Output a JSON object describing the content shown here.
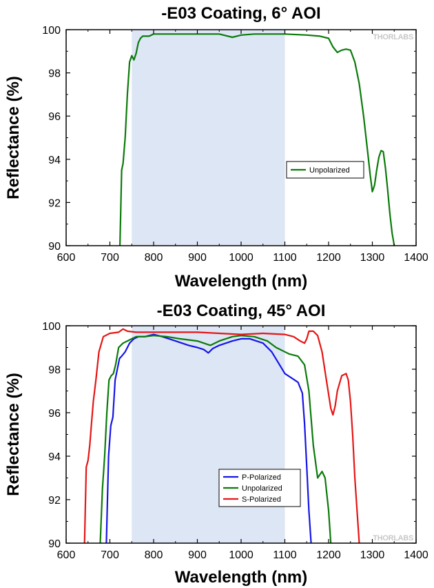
{
  "watermark": "THORLABS",
  "chart_data": [
    {
      "type": "line",
      "title": "-E03 Coating, 6° AOI",
      "xlabel": "Wavelength (nm)",
      "ylabel": "Reflectance (%)",
      "xlim": [
        600,
        1400
      ],
      "ylim": [
        90,
        100
      ],
      "xticks": [
        600,
        700,
        800,
        900,
        1000,
        1100,
        1200,
        1300,
        1400
      ],
      "yticks": [
        90,
        92,
        94,
        96,
        98,
        100
      ],
      "shaded_region": [
        750,
        1100
      ],
      "legend_placement": "center-right",
      "series": [
        {
          "name": "Unpolarized",
          "color": "#0a7a0a",
          "x": [
            723,
            727,
            730,
            735,
            740,
            745,
            750,
            755,
            760,
            765,
            770,
            775,
            780,
            790,
            800,
            820,
            850,
            900,
            950,
            980,
            1000,
            1030,
            1060,
            1100,
            1150,
            1180,
            1200,
            1210,
            1220,
            1230,
            1240,
            1250,
            1260,
            1270,
            1280,
            1290,
            1295,
            1300,
            1305,
            1310,
            1315,
            1320,
            1325,
            1330,
            1335,
            1340,
            1345,
            1350
          ],
          "y": [
            90.0,
            93.5,
            93.8,
            95.0,
            97.0,
            98.5,
            98.8,
            98.6,
            98.9,
            99.4,
            99.6,
            99.7,
            99.7,
            99.7,
            99.8,
            99.8,
            99.8,
            99.8,
            99.8,
            99.65,
            99.75,
            99.8,
            99.8,
            99.8,
            99.75,
            99.7,
            99.6,
            99.2,
            98.95,
            99.05,
            99.1,
            99.05,
            98.5,
            97.5,
            96.0,
            94.2,
            93.3,
            92.5,
            92.8,
            93.5,
            94.1,
            94.4,
            94.35,
            93.6,
            92.6,
            91.5,
            90.6,
            90.0
          ]
        }
      ]
    },
    {
      "type": "line",
      "title": "-E03 Coating, 45° AOI",
      "xlabel": "Wavelength (nm)",
      "ylabel": "Reflectance (%)",
      "xlim": [
        600,
        1400
      ],
      "ylim": [
        90,
        100
      ],
      "xticks": [
        600,
        700,
        800,
        900,
        1000,
        1100,
        1200,
        1300,
        1400
      ],
      "yticks": [
        90,
        92,
        94,
        96,
        98,
        100
      ],
      "shaded_region": [
        750,
        1100
      ],
      "legend_placement": "bottom-right",
      "series": [
        {
          "name": "P-Polarized",
          "color": "#1414e6",
          "x": [
            692,
            697,
            702,
            707,
            712,
            717,
            722,
            727,
            735,
            745,
            755,
            765,
            780,
            800,
            820,
            850,
            880,
            900,
            915,
            925,
            935,
            950,
            980,
            1000,
            1020,
            1050,
            1070,
            1085,
            1100,
            1115,
            1130,
            1140,
            1145,
            1150,
            1155,
            1160
          ],
          "y": [
            90.0,
            94.0,
            95.4,
            95.8,
            97.5,
            98.0,
            98.5,
            98.6,
            98.8,
            99.2,
            99.4,
            99.5,
            99.5,
            99.6,
            99.5,
            99.3,
            99.1,
            99.0,
            98.9,
            98.75,
            98.95,
            99.1,
            99.3,
            99.4,
            99.4,
            99.2,
            98.8,
            98.3,
            97.8,
            97.6,
            97.4,
            96.9,
            95.5,
            93.5,
            91.5,
            90.0
          ]
        },
        {
          "name": "Unpolarized",
          "color": "#0a7a0a",
          "x": [
            678,
            683,
            688,
            693,
            698,
            703,
            708,
            713,
            720,
            730,
            740,
            750,
            760,
            780,
            800,
            830,
            860,
            900,
            930,
            950,
            980,
            1000,
            1030,
            1060,
            1080,
            1100,
            1110,
            1130,
            1145,
            1155,
            1165,
            1175,
            1185,
            1192,
            1200,
            1205
          ],
          "y": [
            90.0,
            92.5,
            94.0,
            96.0,
            97.5,
            97.7,
            97.8,
            98.2,
            99.0,
            99.2,
            99.3,
            99.4,
            99.5,
            99.5,
            99.55,
            99.5,
            99.4,
            99.3,
            99.1,
            99.3,
            99.5,
            99.55,
            99.5,
            99.3,
            99.0,
            98.8,
            98.7,
            98.6,
            98.2,
            97.0,
            94.5,
            93.0,
            93.3,
            93.0,
            91.5,
            90.0
          ]
        },
        {
          "name": "S-Polarized",
          "color": "#e61414",
          "x": [
            642,
            646,
            650,
            654,
            658,
            662,
            668,
            675,
            685,
            700,
            720,
            730,
            740,
            760,
            800,
            850,
            900,
            950,
            1000,
            1050,
            1100,
            1120,
            1135,
            1145,
            1150,
            1155,
            1165,
            1175,
            1185,
            1195,
            1205,
            1210,
            1215,
            1220,
            1230,
            1240,
            1245,
            1250,
            1255,
            1260,
            1265,
            1270
          ],
          "y": [
            90.0,
            93.5,
            93.8,
            94.5,
            95.5,
            96.5,
            97.5,
            98.8,
            99.5,
            99.65,
            99.7,
            99.85,
            99.75,
            99.7,
            99.7,
            99.7,
            99.7,
            99.65,
            99.6,
            99.65,
            99.6,
            99.5,
            99.3,
            99.2,
            99.4,
            99.75,
            99.75,
            99.55,
            98.8,
            97.5,
            96.2,
            95.9,
            96.3,
            97.0,
            97.7,
            97.8,
            97.5,
            96.5,
            95.0,
            93.0,
            91.5,
            90.0
          ]
        }
      ]
    }
  ]
}
